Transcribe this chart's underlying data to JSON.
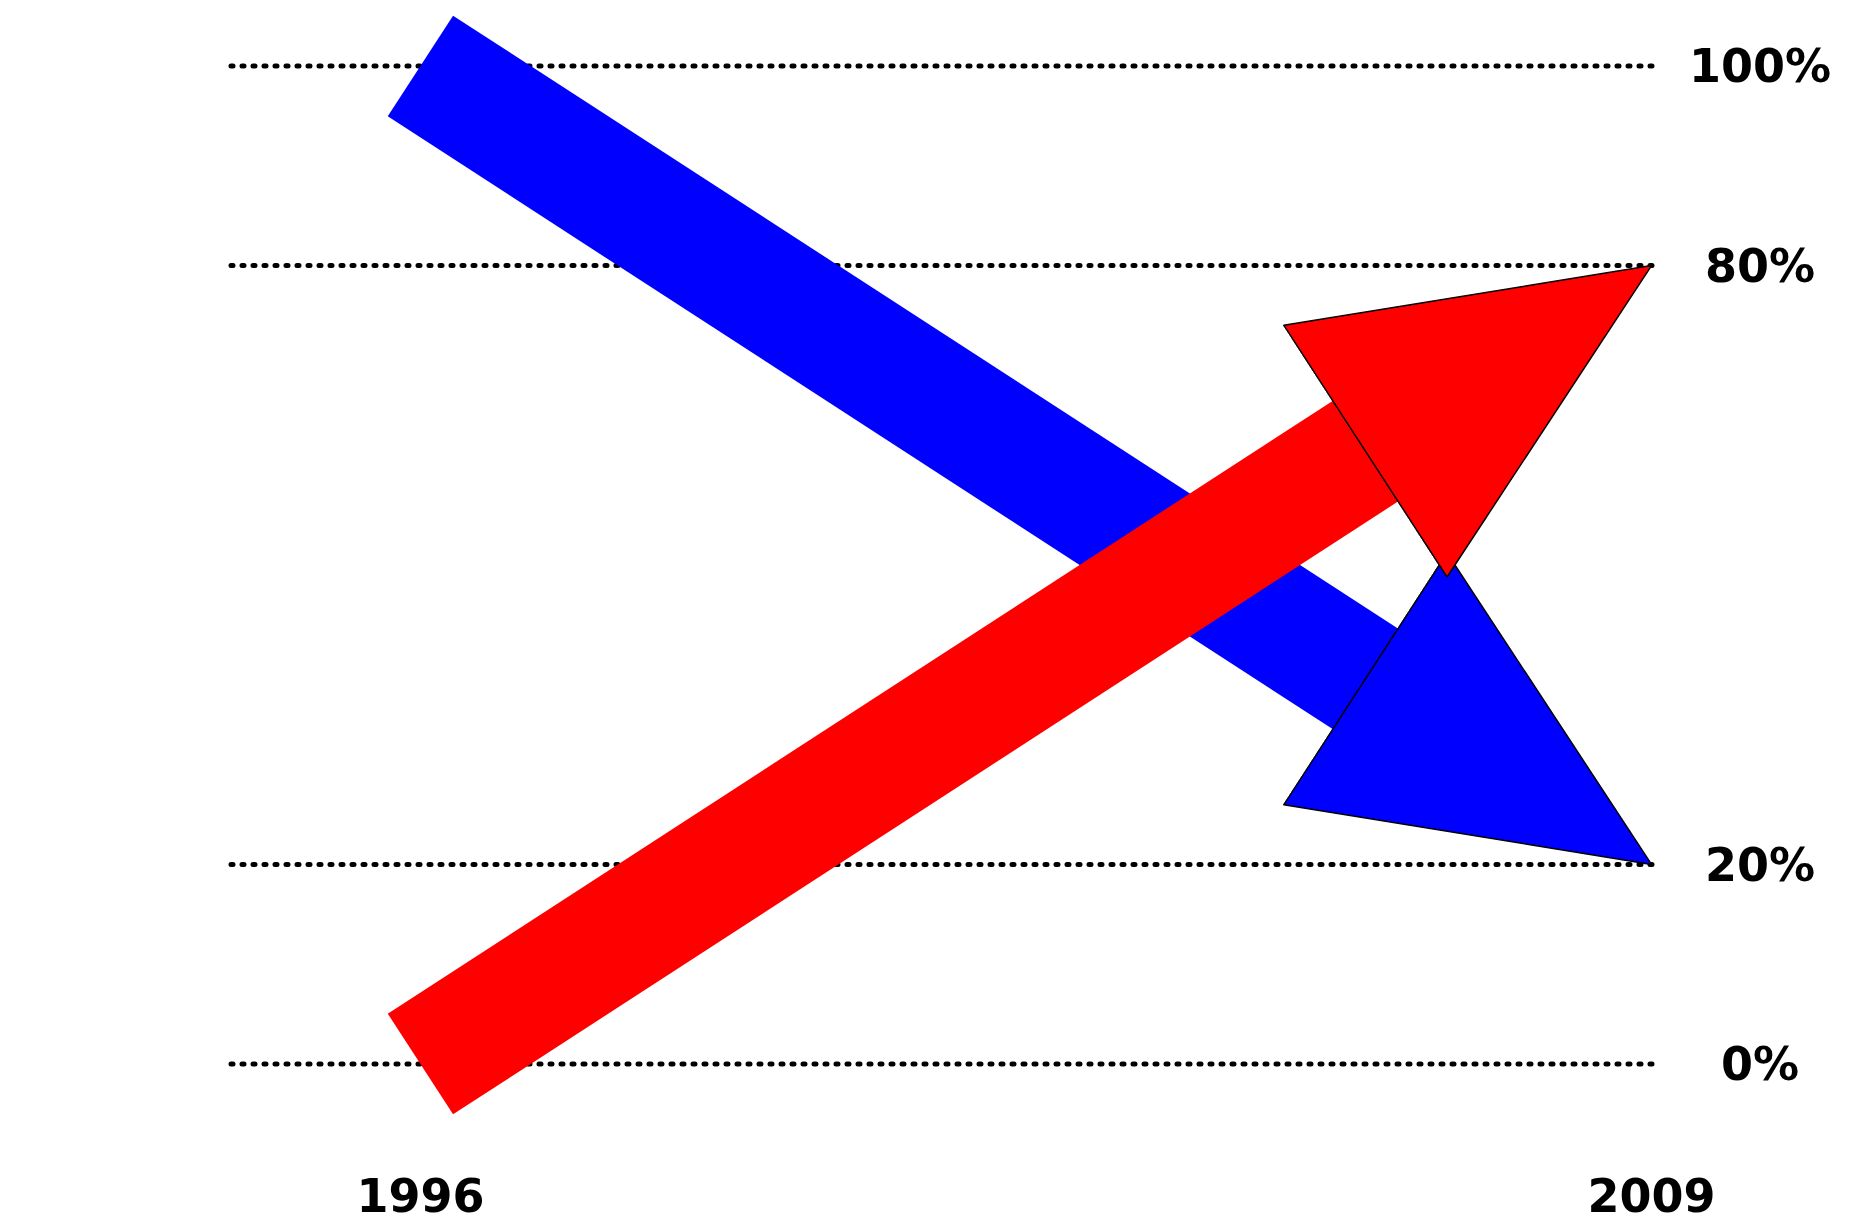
{
  "chart_data": {
    "type": "line",
    "x": [
      1996,
      2009
    ],
    "xlim": [
      1994,
      2009.1
    ],
    "xticks": [
      1996,
      2009
    ],
    "ylim": [
      0,
      100
    ],
    "yticks": [
      {
        "value": 0,
        "label": "0%"
      },
      {
        "value": 20,
        "label": "20%"
      },
      {
        "value": 80,
        "label": "80%"
      },
      {
        "value": 100,
        "label": "100%"
      }
    ],
    "grid": "y",
    "line_style": "dotted",
    "series": [
      {
        "color": "#0000ff",
        "values": [
          100,
          20
        ]
      },
      {
        "color": "#ff0000",
        "values": [
          0,
          80
        ]
      }
    ]
  }
}
